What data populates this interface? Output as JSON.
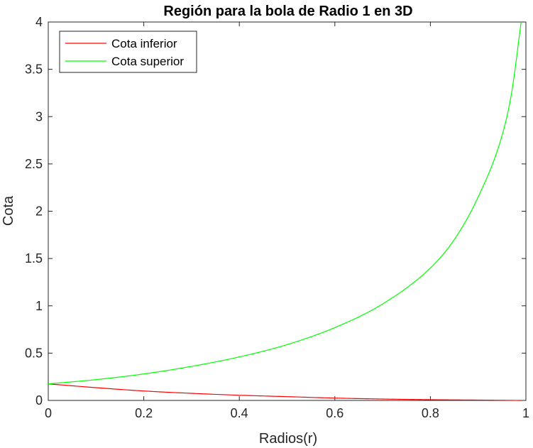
{
  "chart_data": {
    "type": "line",
    "title": "Región para la bola de Radio 1 en 3D",
    "xlabel": "Radios(r)",
    "ylabel": "Cota",
    "xlim": [
      0,
      1
    ],
    "ylim": [
      0,
      4
    ],
    "xticks": [
      "0",
      "0.2",
      "0.4",
      "0.6",
      "0.8",
      "1"
    ],
    "yticks": [
      "0",
      "0.5",
      "1",
      "1.5",
      "2",
      "2.5",
      "3",
      "3.5",
      "4"
    ],
    "grid": false,
    "legend_position": "top-left",
    "series": [
      {
        "name": "Cota inferior",
        "color": "#ff0000",
        "x": [
          0,
          0.1,
          0.2,
          0.3,
          0.4,
          0.5,
          0.6,
          0.7,
          0.8,
          0.9,
          0.99
        ],
        "y": [
          0.175,
          0.135,
          0.1,
          0.075,
          0.055,
          0.04,
          0.025,
          0.015,
          0.008,
          0.004,
          0.0
        ]
      },
      {
        "name": "Cota superior",
        "color": "#00ff00",
        "x": [
          0,
          0.1,
          0.2,
          0.3,
          0.4,
          0.5,
          0.6,
          0.7,
          0.8,
          0.85,
          0.9,
          0.95,
          0.97,
          0.99
        ],
        "y": [
          0.175,
          0.22,
          0.28,
          0.36,
          0.46,
          0.59,
          0.77,
          1.02,
          1.4,
          1.7,
          2.15,
          2.8,
          3.25,
          4.0
        ]
      }
    ]
  }
}
